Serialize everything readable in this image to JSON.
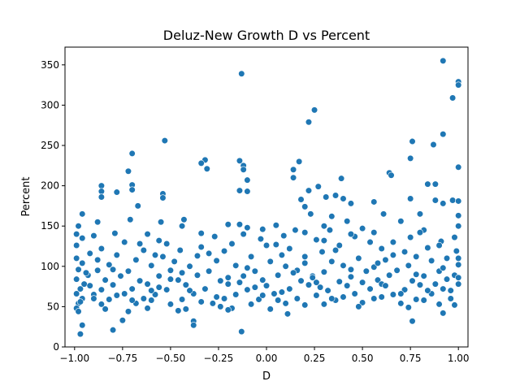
{
  "chart_data": {
    "type": "scatter",
    "title": "Deluz-New Growth D vs Percent",
    "xlabel": "D",
    "ylabel": "Percent",
    "xlim": [
      -1.05,
      1.05
    ],
    "ylim": [
      0,
      372
    ],
    "x_ticks": [
      "−1.00",
      "−0.75",
      "−0.50",
      "−0.25",
      "0.00",
      "0.25",
      "0.50",
      "0.75",
      "1.00"
    ],
    "y_ticks": [
      "0",
      "50",
      "100",
      "150",
      "200",
      "250",
      "300",
      "350"
    ],
    "grid": false,
    "legend": "none",
    "color": "#1f77b4",
    "series": [
      {
        "points": [
          [
            -0.13,
            339
          ],
          [
            0.92,
            355
          ],
          [
            1.0,
            329
          ],
          [
            1.0,
            325
          ],
          [
            0.97,
            309
          ],
          [
            0.25,
            294
          ],
          [
            0.22,
            279
          ],
          [
            0.92,
            264
          ],
          [
            -0.53,
            256
          ],
          [
            0.76,
            255
          ],
          [
            0.87,
            251
          ],
          [
            0.75,
            234
          ],
          [
            -0.32,
            232
          ],
          [
            -0.14,
            231
          ],
          [
            0.17,
            230
          ],
          [
            -0.34,
            228
          ],
          [
            -0.12,
            225
          ],
          [
            1.0,
            223
          ],
          [
            -0.31,
            221
          ],
          [
            -0.12,
            220
          ],
          [
            -0.72,
            218
          ],
          [
            0.14,
            220
          ],
          [
            -0.7,
            240
          ],
          [
            0.14,
            210
          ],
          [
            0.39,
            209
          ],
          [
            0.64,
            216
          ],
          [
            0.65,
            213
          ],
          [
            -0.1,
            207
          ],
          [
            0.84,
            202
          ],
          [
            0.88,
            202
          ],
          [
            -0.86,
            200
          ],
          [
            -0.7,
            201
          ],
          [
            0.27,
            199
          ],
          [
            -0.7,
            195
          ],
          [
            -0.86,
            193
          ],
          [
            -0.54,
            190
          ],
          [
            0.22,
            194
          ],
          [
            -0.14,
            194
          ],
          [
            -0.1,
            193
          ],
          [
            -0.78,
            192
          ],
          [
            0.36,
            188
          ],
          [
            0.31,
            186
          ],
          [
            -0.86,
            186
          ],
          [
            0.4,
            184
          ],
          [
            0.75,
            184
          ],
          [
            0.18,
            183
          ],
          [
            0.88,
            182
          ],
          [
            0.97,
            182
          ],
          [
            1.0,
            181
          ],
          [
            0.56,
            180
          ],
          [
            0.92,
            178
          ],
          [
            0.44,
            178
          ],
          [
            -0.54,
            185
          ],
          [
            -0.67,
            175
          ],
          [
            0.2,
            174
          ],
          [
            -0.96,
            165
          ],
          [
            0.61,
            165
          ],
          [
            0.23,
            165
          ],
          [
            -0.71,
            158
          ],
          [
            -0.43,
            158
          ],
          [
            -0.14,
            152
          ],
          [
            0.05,
            151
          ],
          [
            -0.88,
            155
          ],
          [
            0.8,
            165
          ],
          [
            1.0,
            163
          ],
          [
            0.34,
            162
          ],
          [
            0.42,
            156
          ],
          [
            0.7,
            156
          ],
          [
            -0.98,
            150
          ],
          [
            -0.55,
            155
          ],
          [
            -0.44,
            150
          ],
          [
            -0.1,
            148
          ],
          [
            0.15,
            145
          ],
          [
            0.33,
            145
          ],
          [
            0.5,
            147
          ],
          [
            -0.02,
            146
          ],
          [
            0.82,
            145
          ],
          [
            0.56,
            142
          ],
          [
            -0.79,
            141
          ],
          [
            -0.62,
            140
          ],
          [
            -0.34,
            141
          ],
          [
            0.09,
            138
          ],
          [
            -0.27,
            137
          ],
          [
            0.46,
            137
          ],
          [
            0.75,
            136
          ],
          [
            0.98,
            136
          ],
          [
            -0.96,
            135
          ],
          [
            -0.03,
            134
          ],
          [
            0.26,
            133
          ],
          [
            0.66,
            130
          ],
          [
            0.91,
            131
          ],
          [
            -0.74,
            130
          ],
          [
            -0.52,
            128
          ],
          [
            -0.18,
            128
          ],
          [
            0.05,
            127
          ],
          [
            0.38,
            126
          ],
          [
            -0.99,
            126
          ],
          [
            -0.86,
            122
          ],
          [
            -0.64,
            120
          ],
          [
            -0.45,
            120
          ],
          [
            0.12,
            122
          ],
          [
            0.6,
            122
          ],
          [
            0.84,
            123
          ],
          [
            -0.22,
            119
          ],
          [
            0.29,
            118
          ],
          [
            0.72,
            118
          ],
          [
            0.99,
            119
          ],
          [
            -0.92,
            116
          ],
          [
            -0.78,
            114
          ],
          [
            -0.58,
            114
          ],
          [
            -0.36,
            113
          ],
          [
            -0.08,
            112
          ],
          [
            0.2,
            112
          ],
          [
            0.48,
            110
          ],
          [
            0.78,
            112
          ],
          [
            0.94,
            110
          ],
          [
            -0.99,
            110
          ],
          [
            -0.68,
            108
          ],
          [
            -0.48,
            106
          ],
          [
            -0.26,
            107
          ],
          [
            0.02,
            106
          ],
          [
            0.34,
            106
          ],
          [
            0.62,
            108
          ],
          [
            0.86,
            107
          ],
          [
            -0.96,
            104
          ],
          [
            -0.82,
            102
          ],
          [
            -0.6,
            101
          ],
          [
            -0.4,
            100
          ],
          [
            -0.16,
            101
          ],
          [
            0.1,
            100
          ],
          [
            0.4,
            101
          ],
          [
            0.56,
            99
          ],
          [
            0.74,
            101
          ],
          [
            1.0,
            102
          ],
          [
            -0.98,
            96
          ],
          [
            -0.88,
            95
          ],
          [
            -0.72,
            94
          ],
          [
            -0.5,
            95
          ],
          [
            -0.3,
            94
          ],
          [
            -0.06,
            94
          ],
          [
            0.16,
            95
          ],
          [
            0.3,
            93
          ],
          [
            0.52,
            94
          ],
          [
            0.68,
            95
          ],
          [
            0.9,
            94
          ],
          [
            -0.93,
            89
          ],
          [
            -0.76,
            88
          ],
          [
            -0.56,
            88
          ],
          [
            -0.36,
            89
          ],
          [
            -0.12,
            88
          ],
          [
            0.06,
            89
          ],
          [
            0.24,
            88
          ],
          [
            0.44,
            87
          ],
          [
            0.64,
            89
          ],
          [
            0.82,
            88
          ],
          [
            0.98,
            89
          ],
          [
            -0.99,
            84
          ],
          [
            -0.84,
            83
          ],
          [
            -0.66,
            82
          ],
          [
            -0.46,
            83
          ],
          [
            -0.24,
            82
          ],
          [
            -0.02,
            83
          ],
          [
            0.18,
            82
          ],
          [
            0.38,
            81
          ],
          [
            0.58,
            83
          ],
          [
            0.76,
            82
          ],
          [
            0.94,
            84
          ],
          [
            -0.95,
            78
          ],
          [
            -0.8,
            77
          ],
          [
            -0.62,
            78
          ],
          [
            -0.42,
            77
          ],
          [
            -0.2,
            78
          ],
          [
            0.0,
            76
          ],
          [
            0.22,
            77
          ],
          [
            0.42,
            76
          ],
          [
            0.6,
            78
          ],
          [
            0.8,
            77
          ],
          [
            1.0,
            78
          ],
          [
            -0.97,
            72
          ],
          [
            -0.86,
            71
          ],
          [
            -0.7,
            72
          ],
          [
            -0.52,
            71
          ],
          [
            -0.32,
            72
          ],
          [
            -0.1,
            71
          ],
          [
            0.12,
            72
          ],
          [
            0.32,
            70
          ],
          [
            0.54,
            72
          ],
          [
            0.72,
            71
          ],
          [
            0.92,
            72
          ],
          [
            -0.99,
            66
          ],
          [
            -0.9,
            65
          ],
          [
            -0.74,
            66
          ],
          [
            -0.58,
            65
          ],
          [
            -0.38,
            66
          ],
          [
            -0.16,
            65
          ],
          [
            0.04,
            66
          ],
          [
            0.26,
            64
          ],
          [
            0.46,
            66
          ],
          [
            0.66,
            65
          ],
          [
            0.86,
            66
          ],
          [
            -0.96,
            60
          ],
          [
            -0.82,
            59
          ],
          [
            -0.64,
            60
          ],
          [
            -0.44,
            59
          ],
          [
            -0.22,
            60
          ],
          [
            -0.04,
            59
          ],
          [
            0.16,
            60
          ],
          [
            0.36,
            58
          ],
          [
            0.56,
            60
          ],
          [
            0.78,
            59
          ],
          [
            0.96,
            60
          ],
          [
            -0.98,
            54
          ],
          [
            -0.86,
            53
          ],
          [
            -0.68,
            54
          ],
          [
            -0.5,
            53
          ],
          [
            -0.28,
            54
          ],
          [
            -0.08,
            53
          ],
          [
            0.1,
            54
          ],
          [
            0.3,
            53
          ],
          [
            0.5,
            55
          ],
          [
            0.7,
            54
          ],
          [
            0.9,
            53
          ],
          [
            -0.99,
            48
          ],
          [
            -0.84,
            47
          ],
          [
            -0.62,
            48
          ],
          [
            -0.42,
            47
          ],
          [
            -0.18,
            48
          ],
          [
            0.02,
            47
          ],
          [
            0.2,
            52
          ],
          [
            0.48,
            50
          ],
          [
            0.74,
            49
          ],
          [
            0.98,
            52
          ],
          [
            -0.98,
            44
          ],
          [
            -0.72,
            44
          ],
          [
            -0.46,
            45
          ],
          [
            -0.2,
            46
          ],
          [
            0.11,
            41
          ],
          [
            0.92,
            42
          ],
          [
            -0.38,
            32
          ],
          [
            -0.38,
            27
          ],
          [
            0.76,
            32
          ],
          [
            -0.96,
            27
          ],
          [
            -0.75,
            33
          ],
          [
            -0.97,
            16
          ],
          [
            -0.8,
            21
          ],
          [
            -0.13,
            19
          ],
          [
            -0.9,
            60
          ],
          [
            -0.6,
            70
          ],
          [
            -0.26,
            62
          ],
          [
            0.08,
            68
          ],
          [
            0.28,
            74
          ],
          [
            0.6,
            62
          ],
          [
            0.84,
            70
          ],
          [
            -0.94,
            92
          ],
          [
            -0.5,
            84
          ],
          [
            -0.14,
            80
          ],
          [
            0.24,
            86
          ],
          [
            0.5,
            80
          ],
          [
            0.88,
            78
          ],
          [
            -0.7,
            58
          ],
          [
            -0.34,
            56
          ],
          [
            -0.02,
            64
          ],
          [
            0.34,
            60
          ],
          [
            0.7,
            66
          ],
          [
            0.96,
            70
          ],
          [
            -0.92,
            76
          ],
          [
            -0.56,
            74
          ],
          [
            -0.2,
            86
          ],
          [
            0.14,
            92
          ],
          [
            0.44,
            96
          ],
          [
            0.78,
            90
          ],
          [
            -0.8,
            96
          ],
          [
            -0.44,
            92
          ],
          [
            -0.1,
            98
          ],
          [
            0.2,
            104
          ],
          [
            0.58,
            104
          ],
          [
            0.92,
            98
          ],
          [
            -0.6,
            58
          ],
          [
            -0.24,
            50
          ],
          [
            0.06,
            58
          ],
          [
            0.4,
            62
          ],
          [
            0.82,
            58
          ],
          [
            -0.97,
            56
          ],
          [
            -0.78,
            64
          ],
          [
            -0.4,
            70
          ],
          [
            -0.06,
            74
          ],
          [
            0.26,
            80
          ],
          [
            0.62,
            76
          ],
          [
            1.0,
            86
          ],
          [
            -0.88,
            108
          ],
          [
            -0.54,
            112
          ],
          [
            -0.3,
            116
          ],
          [
            0.08,
            114
          ],
          [
            0.36,
            120
          ],
          [
            0.66,
            114
          ],
          [
            1.0,
            110
          ],
          [
            -0.66,
            128
          ],
          [
            -0.34,
            124
          ],
          [
            0.0,
            126
          ],
          [
            0.3,
            132
          ],
          [
            0.54,
            130
          ],
          [
            0.9,
            126
          ],
          [
            -0.9,
            138
          ],
          [
            -0.56,
            132
          ],
          [
            -0.12,
            140
          ],
          [
            0.2,
            142
          ],
          [
            0.44,
            140
          ],
          [
            0.8,
            142
          ],
          [
            -0.99,
            140
          ],
          [
            1.0,
            150
          ],
          [
            0.3,
            150
          ],
          [
            -0.2,
            152
          ]
        ]
      }
    ]
  }
}
